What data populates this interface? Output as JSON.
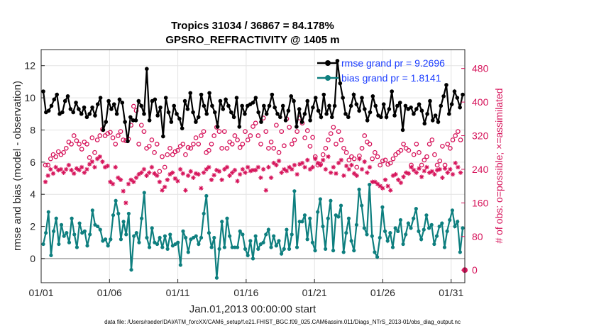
{
  "chart_data": {
    "type": "line",
    "title_line1": "Tropics 31034 / 36867 = 84.178%",
    "title_line2": "GPSRO_REFRACTIVITY @ 1405 m",
    "xlabel": "Jan.01,2013 00:00:00 start",
    "ylabel_left": "rmse and bias (model - observation)",
    "ylabel_right": "# of obs: o=possible; ×=assimilated",
    "footnote": "data file: /Users/raeder/DAI/ATM_forcXX/CAM6_setup/f.e21.FHIST_BGC.f09_025.CAM6assim.011/Diags_NTrS_2013-01/obs_diag_output.nc",
    "x_ticks": [
      {
        "day": 0,
        "label": "01/01"
      },
      {
        "day": 5,
        "label": "01/06"
      },
      {
        "day": 10,
        "label": "01/11"
      },
      {
        "day": 15,
        "label": "01/16"
      },
      {
        "day": 20,
        "label": "01/21"
      },
      {
        "day": 25,
        "label": "01/26"
      },
      {
        "day": 30,
        "label": "01/31"
      }
    ],
    "xlim": [
      0,
      31
    ],
    "ylim_left": [
      -1.5,
      13
    ],
    "yticks_left": [
      "0",
      "2",
      "4",
      "6",
      "8",
      "10",
      "12"
    ],
    "ylim_right": [
      -30,
      525
    ],
    "yticks_right": [
      "0",
      "80",
      "160",
      "240",
      "320",
      "400",
      "480"
    ],
    "grid": true,
    "legend_position": "top-right",
    "colors": {
      "rmse": "#000000",
      "bias": "#0e7f7f",
      "obs": "#d6135a",
      "zero_line": "#b8b8b8"
    },
    "series": [
      {
        "name": "rmse grand pr = 9.2696",
        "axis": "left",
        "values": [
          10.4,
          9.1,
          9.2,
          9.5,
          9.9,
          10.2,
          9.0,
          9.1,
          9.8,
          10.1,
          9.3,
          9.1,
          9.7,
          9.3,
          9.0,
          9.4,
          8.8,
          9.0,
          9.4,
          8.9,
          9.6,
          10.0,
          8.0,
          8.5,
          9.8,
          9.3,
          9.6,
          9.0,
          9.9,
          9.7,
          8.5,
          7.3,
          8.8,
          8.6,
          8.6,
          9.8,
          9.5,
          9.0,
          11.8,
          8.6,
          9.8,
          9.9,
          8.9,
          9.4,
          7.6,
          10.0,
          9.1,
          8.5,
          9.5,
          9.0,
          8.7,
          8.1,
          9.8,
          9.3,
          10.3,
          9.1,
          8.5,
          8.8,
          10.2,
          9.5,
          9.0,
          10.3,
          9.5,
          9.1,
          8.2,
          9.8,
          9.3,
          9.9,
          9.5,
          9.1,
          8.8,
          10.0,
          8.2,
          9.5,
          9.0,
          9.5,
          9.6,
          9.7,
          10.0,
          9.1,
          8.5,
          9.5,
          9.0,
          9.5,
          10.2,
          9.4,
          9.0,
          8.8,
          9.5,
          8.6,
          9.2,
          10.1,
          9.8,
          8.2,
          9.3,
          8.5,
          9.0,
          9.8,
          8.6,
          9.4,
          10.0,
          9.2,
          8.8,
          10.2,
          9.0,
          9.5,
          8.8,
          9.5,
          12.3,
          10.9,
          10.0,
          9.0,
          8.8,
          9.5,
          10.2,
          9.6,
          9.2,
          10.0,
          9.3,
          8.6,
          9.1,
          10.1,
          9.5,
          8.9,
          8.8,
          9.6,
          8.8,
          9.3,
          10.4,
          8.9,
          9.5,
          9.7,
          8.0,
          9.5,
          9.3,
          9.4,
          9.0,
          9.3,
          9.6,
          9.2,
          8.4,
          9.0,
          9.8,
          8.6,
          8.9,
          8.5,
          9.5,
          10.1,
          10.8,
          9.0,
          9.6,
          10.4,
          10.0,
          9.4,
          10.2
        ]
      },
      {
        "name": "bias grand pr = 1.8141",
        "axis": "left",
        "values": [
          0.9,
          1.6,
          2.9,
          0.2,
          1.7,
          2.5,
          0.9,
          2.1,
          1.4,
          1.6,
          1.0,
          2.5,
          1.5,
          0.7,
          2.2,
          1.6,
          1.7,
          0.8,
          1.5,
          3.0,
          2.1,
          2.0,
          1.8,
          1.1,
          1.2,
          0.8,
          1.2,
          2.7,
          3.6,
          2.8,
          1.2,
          2.3,
          1.5,
          2.8,
          -0.7,
          1.4,
          1.6,
          1.0,
          2.5,
          4.1,
          1.3,
          0.7,
          1.9,
          1.0,
          0.9,
          1.3,
          0.7,
          1.4,
          0.6,
          1.5,
          0.8,
          0.9,
          1.0,
          -0.4,
          1.7,
          1.3,
          0.4,
          1.2,
          1.3,
          1.4,
          0.9,
          1.3,
          2.8,
          3.9,
          1.6,
          0.7,
          1.3,
          -1.2,
          0.6,
          2.3,
          0.7,
          2.5,
          1.4,
          0.7,
          0.7,
          0.7,
          1.7,
          1.5,
          0.6,
          0.2,
          1.1,
          0.0,
          1.4,
          0.6,
          0.9,
          1.0,
          1.5,
          1.8,
          0.7,
          1.4,
          0.8,
          1.1,
          0.3,
          0.6,
          1.8,
          0.6,
          1.5,
          4.2,
          0.7,
          2.3,
          2.3,
          2.7,
          1.2,
          2.5,
          1.0,
          0.5,
          2.9,
          3.7,
          2.0,
          0.6,
          2.5,
          3.6,
          0.5,
          2.7,
          2.6,
          3.3,
          0.4,
          1.6,
          2.5,
          1.1,
          0.5,
          2.1,
          4.3,
          3.3,
          1.9,
          1.5,
          4.6,
          1.4,
          0.4,
          0.1,
          1.3,
          3.2,
          1.7,
          1.1,
          1.6,
          0.7,
          1.9,
          1.7,
          2.4,
          0.9,
          1.5,
          2.2,
          1.9,
          2.5,
          3.1,
          1.7,
          1.2,
          1.8,
          2.7,
          1.9,
          2.1,
          0.9,
          1.4,
          2.0,
          2.2,
          0.7,
          1.7,
          2.4,
          3.0,
          2.0,
          2.3,
          0.4,
          1.9
        ]
      },
      {
        "name": "possible",
        "axis": "right",
        "marker": "o",
        "values": [
          250,
          250,
          265,
          275,
          270,
          282,
          275,
          280,
          290,
          305,
          300,
          320,
          308,
          300,
          288,
          305,
          300,
          268,
          315,
          280,
          310,
          320,
          335,
          320,
          325,
          328,
          315,
          300,
          320,
          330,
          310,
          308,
          312,
          345,
          390,
          380,
          300,
          345,
          330,
          290,
          295,
          310,
          280,
          300,
          235,
          270,
          245,
          275,
          290,
          275,
          282,
          285,
          295,
          300,
          275,
          292,
          290,
          300,
          315,
          300,
          320,
          330,
          280,
          285,
          300,
          320,
          340,
          330,
          290,
          330,
          290,
          305,
          300,
          320,
          310,
          292,
          300,
          330,
          310,
          320,
          342,
          350,
          320,
          300,
          362,
          330,
          290,
          305,
          290,
          345,
          280,
          330,
          296,
          360,
          340,
          300,
          310,
          330,
          362,
          350,
          315,
          332,
          295,
          316,
          270,
          250,
          252,
          275,
          290,
          310,
          325,
          340,
          300,
          330,
          310,
          290,
          280,
          262,
          270,
          265,
          245,
          272,
          290,
          320,
          305,
          300,
          265,
          280,
          270,
          250,
          260,
          262,
          252,
          255,
          265,
          275,
          280,
          285,
          300,
          290,
          285,
          250,
          275,
          300,
          280,
          250,
          262,
          270,
          300,
          310,
          275,
          250,
          260,
          295,
          250,
          300,
          290,
          310,
          320,
          330,
          310
        ]
      },
      {
        "name": "assimilated",
        "axis": "right",
        "marker": "x",
        "values": [
          210,
          225,
          240,
          230,
          245,
          238,
          240,
          232,
          240,
          250,
          238,
          230,
          242,
          238,
          245,
          232,
          240,
          252,
          258,
          245,
          265,
          270,
          258,
          245,
          248,
          210,
          205,
          245,
          220,
          215,
          188,
          160,
          205,
          215,
          210,
          220,
          228,
          232,
          240,
          225,
          232,
          245,
          230,
          225,
          210,
          190,
          198,
          215,
          228,
          232,
          218,
          212,
          240,
          230,
          190,
          225,
          235,
          220,
          230,
          228,
          195,
          232,
          240,
          245,
          215,
          226,
          238,
          235,
          215,
          240,
          245,
          225,
          232,
          238,
          212,
          228,
          240,
          232,
          245,
          236,
          238,
          238,
          245,
          220,
          240,
          190,
          245,
          220,
          255,
          250,
          260,
          232,
          240,
          236,
          245,
          240,
          250,
          228,
          252,
          255,
          245,
          262,
          240,
          245,
          265,
          255,
          250,
          262,
          240,
          270,
          232,
          245,
          230,
          255,
          262,
          225,
          248,
          240,
          250,
          230,
          225,
          265,
          240,
          258,
          232,
          245,
          210,
          210,
          205,
          200,
          195,
          215,
          200,
          190,
          225,
          228,
          215,
          208,
          222,
          232,
          230,
          245,
          238,
          232,
          242,
          222,
          236,
          245,
          232,
          235,
          228,
          238,
          240,
          220,
          242,
          232,
          240,
          228,
          255,
          245,
          232
        ]
      }
    ]
  }
}
